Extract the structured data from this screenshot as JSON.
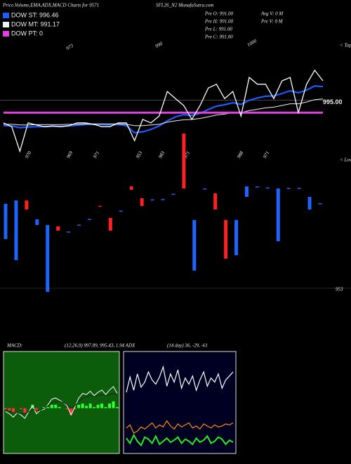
{
  "header": {
    "title": "Price,Volume,EMA,ADX,MACD Charts for 9571",
    "site": "SFL26_N2 MunafaSutra.com"
  },
  "info": {
    "col1": [
      "Pre O: 991.00",
      "Pre H: 991.00",
      "Pre L: 991.00",
      "Pre C: 991.00"
    ],
    "col2": [
      "Avg V: 0 M",
      "Pre V: 0 M"
    ]
  },
  "indicator_label": {
    "macd": "MACD:",
    "macd_values": "(12,26,9) 997.89, 995.43, 1.94 ADX",
    "adx_values": "(14 day) 36, -29, -61"
  },
  "chart_data": [
    {
      "type": "line",
      "ylim": [
        975,
        1012
      ],
      "last_price": {
        "value": 995,
        "label": "995.00"
      },
      "top_labels": [
        973,
        990,
        1000
      ],
      "bottom_labels": [
        970,
        969,
        971,
        953,
        983,
        971,
        988,
        971
      ],
      "tops_label": "< Tops",
      "lows_label": "< Lows",
      "series": [
        {
          "name": "DOW ST: 996.46",
          "color": "#1e5bff",
          "width": 2.2,
          "values": [
            987.6,
            987.5,
            987.0,
            987.2,
            987.3,
            987.3,
            987.4,
            987.4,
            987.5,
            987.7,
            987.9,
            988.0,
            987.9,
            987.8,
            987.9,
            987.6,
            985.5,
            985.8,
            986.5,
            987.5,
            989.0,
            990.2,
            990.8,
            990.6,
            991.2,
            992.3,
            993.3,
            993.7,
            994.3,
            993.8,
            995.0,
            995.7,
            996.2,
            996.3,
            997.0,
            997.8,
            997.2,
            998.0,
            999.2,
            999.0
          ]
        },
        {
          "name": "DOW MT: 991.17",
          "color": "#f0f0f0",
          "width": 1,
          "values": [
            988.0,
            988.0,
            987.8,
            987.8,
            987.9,
            987.9,
            987.9,
            987.9,
            988.0,
            988.0,
            988.1,
            988.1,
            988.1,
            988.1,
            988.1,
            988.0,
            987.6,
            987.6,
            987.8,
            988.0,
            988.6,
            989.0,
            989.3,
            989.4,
            989.7,
            990.2,
            990.7,
            991.0,
            991.4,
            991.4,
            992.0,
            992.4,
            992.8,
            993.0,
            993.5,
            994.0,
            994.0,
            994.5,
            995.2,
            995.4
          ]
        },
        {
          "name": "DOW PT: 0",
          "color": "#e040e0",
          "width": 3,
          "values": [
            991.4,
            991.4,
            991.4,
            991.4,
            991.4,
            991.4,
            991.4,
            991.4,
            991.4,
            991.4,
            991.4,
            991.4,
            991.4,
            991.4,
            991.4,
            991.4,
            991.4,
            991.4,
            991.4,
            991.4,
            991.4,
            991.4,
            991.4,
            991.4,
            991.4,
            991.4,
            991.4,
            991.4,
            991.4,
            991.4,
            991.4,
            991.4,
            991.4,
            991.4,
            991.4,
            991.4,
            991.4,
            991.4,
            991.4,
            991.4
          ]
        }
      ],
      "price": {
        "color": "#ffffff",
        "values": [
          988.4,
          987.3,
          980.1,
          988.4,
          987.8,
          987.3,
          987.5,
          987.3,
          987.6,
          988.4,
          988.4,
          988.0,
          987.3,
          987.3,
          988.4,
          988.4,
          983.2,
          989.4,
          988.4,
          990.4,
          997.6,
          995.5,
          993.5,
          989.4,
          993.5,
          998.6,
          999.7,
          995.5,
          997.6,
          990.4,
          1001.7,
          999.7,
          999.7,
          995.5,
          1000.7,
          1001.7,
          991.4,
          999.7,
          1003.8,
          1000.7
        ]
      }
    },
    {
      "type": "candlestick",
      "ylim": [
        953,
        1030
      ],
      "yticks": [
        953
      ],
      "up_color": "#ff2020",
      "down_color": "#1e64ff",
      "open": [
        993.2,
        994.8,
        990.5,
        985.8,
        983.1,
        980.4,
        980.0,
        983.3,
        986.0,
        991.8,
        980.4,
        990.0,
        999.9,
        992.2,
        995.3,
        995.5,
        998.0,
        1000.5,
        985.5,
        1000.5,
        990.5,
        967.1,
        985.5,
        1001.5,
        1001.5,
        1001.0,
        1000.5,
        1000.8,
        1000.8,
        996.5,
        993.5
      ],
      "close": [
        976.4,
        966.4,
        994.8,
        983.1,
        951.3,
        982.5,
        979.5,
        982.8,
        985.5,
        992.3,
        986.5,
        989.5,
        1001.5,
        995.9,
        994.8,
        995.0,
        997.5,
        1026.7,
        961.4,
        1000.0,
        998.2,
        985.5,
        968.7,
        996.5,
        1001.0,
        1000.5,
        975.4,
        1000.3,
        1000.3,
        990.5,
        993.0
      ]
    },
    {
      "type": "macd",
      "ylim": [
        -4,
        5
      ],
      "background": "#0b5d0b",
      "series": [
        {
          "color": "#ffffff",
          "values": [
            -0.3,
            -0.5,
            -0.8,
            -0.4,
            -0.6,
            -0.9,
            -0.3,
            0.2,
            -0.5,
            -0.2,
            -0.1,
            0.3,
            0.8,
            0.9,
            0.7,
            0.5,
            0.2,
            -0.6,
            0.1,
            0.9,
            1.3,
            1.2,
            1.5,
            1.1,
            1.4,
            1.6,
            1.2,
            1.6,
            1.9,
            1.3
          ]
        },
        {
          "color": "#202020",
          "values": [
            -0.2,
            -0.3,
            -0.4,
            -0.4,
            -0.5,
            -0.5,
            -0.3,
            -0.1,
            -0.2,
            -0.2,
            0.0,
            0.2,
            0.5,
            0.6,
            0.6,
            0.5,
            0.3,
            0.0,
            0.2,
            0.6,
            0.9,
            1.0,
            1.1,
            1.0,
            1.1,
            1.2,
            1.1,
            1.2,
            1.3,
            1.2
          ]
        }
      ],
      "histogram": {
        "up_color": "#33ff33",
        "down_color": "#ff3030",
        "values": [
          -0.1,
          -0.2,
          -0.4,
          0.0,
          -0.1,
          -0.4,
          0.0,
          0.3,
          -0.3,
          0.0,
          0.1,
          0.1,
          0.3,
          0.3,
          0.1,
          0.0,
          -0.1,
          -0.6,
          -0.1,
          0.3,
          0.4,
          0.2,
          0.4,
          0.1,
          0.3,
          0.4,
          0.1,
          0.4,
          0.6,
          0.1
        ]
      }
    },
    {
      "type": "adx",
      "ylim": [
        0,
        100
      ],
      "background": "#000022",
      "series": [
        {
          "color": "#ffffff",
          "values": [
            60,
            75,
            62,
            78,
            65,
            70,
            80,
            72,
            68,
            75,
            85,
            66,
            78,
            70,
            82,
            64,
            74,
            68,
            76,
            62,
            72,
            80,
            66,
            74,
            70,
            78,
            64,
            72,
            76,
            80
          ]
        },
        {
          "color": "#ff8c1a",
          "values": [
            25,
            28,
            20,
            22,
            26,
            24,
            27,
            30,
            25,
            28,
            26,
            32,
            27,
            24,
            29,
            26,
            28,
            30,
            25,
            27,
            24,
            29,
            27,
            25,
            28,
            26,
            27,
            29,
            28,
            30
          ]
        },
        {
          "color": "#22ee22",
          "values": [
            15,
            10,
            18,
            12,
            8,
            16,
            14,
            10,
            17,
            9,
            12,
            15,
            11,
            13,
            16,
            10,
            14,
            12,
            9,
            15,
            11,
            13,
            17,
            10,
            12,
            16,
            14,
            9,
            13,
            11
          ]
        }
      ]
    }
  ]
}
